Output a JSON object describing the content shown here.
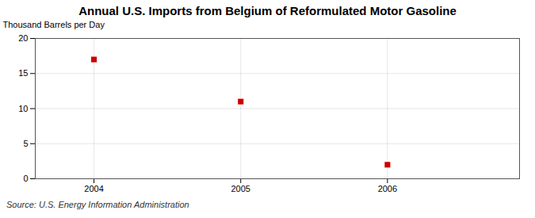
{
  "chart_data": {
    "type": "scatter",
    "title": "Annual U.S. Imports from Belgium of Reformulated Motor Gasoline",
    "ylabel": "Thousand Barrels per Day",
    "source": "Source: U.S. Energy Information Administration",
    "x": [
      2004,
      2005,
      2006
    ],
    "values": [
      17,
      11,
      2
    ],
    "color": "#cc0000",
    "marker": "square",
    "xlim": [
      2003.6,
      2006.9
    ],
    "ylim": [
      0,
      20
    ],
    "xticks": [
      2004,
      2005,
      2006
    ],
    "yticks": [
      0,
      5,
      10,
      15,
      20
    ],
    "grid": true
  }
}
